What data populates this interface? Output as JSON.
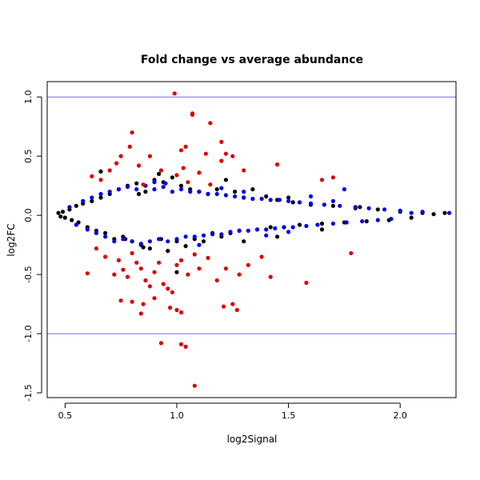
{
  "chart_data": {
    "type": "scatter",
    "title": "Fold change vs average abundance",
    "xlabel": "log2Signal",
    "ylabel": "log2FC",
    "xlim": [
      0.42,
      2.25
    ],
    "ylim": [
      -1.54,
      1.13
    ],
    "x_ticks": [
      "0.5",
      "1.0",
      "1.5",
      "2.0"
    ],
    "x_tick_values": [
      0.5,
      1.0,
      1.5,
      2.0
    ],
    "y_ticks": [
      "-1.5",
      "-1.0",
      "-0.5",
      "0.0",
      "0.5",
      "1.0"
    ],
    "y_tick_values": [
      -1.5,
      -1.0,
      -0.5,
      0.0,
      0.5,
      1.0
    ],
    "reference_lines": [
      1.0,
      -1.0
    ],
    "reference_line_color": "#7070dd",
    "grid": false,
    "series": [
      {
        "color": "#000000",
        "points": [
          [
            0.47,
            0.02
          ],
          [
            0.48,
            -0.01
          ],
          [
            0.49,
            0.03
          ],
          [
            0.5,
            -0.02
          ],
          [
            0.52,
            0.05
          ],
          [
            0.53,
            -0.04
          ],
          [
            0.55,
            0.08
          ],
          [
            0.56,
            -0.06
          ],
          [
            0.58,
            0.1
          ],
          [
            0.6,
            -0.1
          ],
          [
            0.62,
            0.12
          ],
          [
            0.64,
            -0.13
          ],
          [
            0.66,
            0.15
          ],
          [
            0.68,
            -0.15
          ],
          [
            0.7,
            0.18
          ],
          [
            0.72,
            -0.2
          ],
          [
            0.74,
            0.22
          ],
          [
            0.76,
            -0.18
          ],
          [
            0.78,
            0.25
          ],
          [
            0.8,
            -0.22
          ],
          [
            0.82,
            0.27
          ],
          [
            0.84,
            -0.25
          ],
          [
            0.86,
            0.2
          ],
          [
            0.88,
            -0.28
          ],
          [
            0.9,
            0.3
          ],
          [
            0.92,
            0.35
          ],
          [
            0.94,
            0.28
          ],
          [
            0.96,
            -0.3
          ],
          [
            0.98,
            0.32
          ],
          [
            1.0,
            -0.22
          ],
          [
            1.02,
            0.25
          ],
          [
            1.04,
            -0.26
          ],
          [
            1.06,
            0.22
          ],
          [
            1.08,
            -0.2
          ],
          [
            1.1,
            0.2
          ],
          [
            1.12,
            -0.22
          ],
          [
            1.14,
            0.18
          ],
          [
            1.16,
            -0.15
          ],
          [
            1.18,
            0.22
          ],
          [
            1.2,
            -0.18
          ],
          [
            1.22,
            0.3
          ],
          [
            1.24,
            -0.15
          ],
          [
            1.26,
            0.2
          ],
          [
            1.28,
            -0.13
          ],
          [
            1.3,
            0.15
          ],
          [
            1.34,
            0.22
          ],
          [
            1.36,
            -0.12
          ],
          [
            1.4,
            0.16
          ],
          [
            1.42,
            -0.1
          ],
          [
            1.45,
            0.13
          ],
          [
            1.48,
            -0.1
          ],
          [
            1.52,
            0.11
          ],
          [
            1.55,
            -0.08
          ],
          [
            1.6,
            0.09
          ],
          [
            1.65,
            -0.07
          ],
          [
            1.7,
            0.08
          ],
          [
            1.75,
            -0.06
          ],
          [
            1.8,
            0.06
          ],
          [
            1.85,
            -0.05
          ],
          [
            1.9,
            0.05
          ],
          [
            1.95,
            -0.04
          ],
          [
            2.0,
            0.03
          ],
          [
            2.05,
            -0.02
          ],
          [
            2.1,
            0.02
          ],
          [
            2.15,
            0.01
          ],
          [
            2.2,
            0.02
          ],
          [
            0.77,
            -0.2
          ],
          [
            0.83,
            0.18
          ],
          [
            0.93,
            -0.2
          ],
          [
            1.0,
            -0.48
          ],
          [
            0.66,
            0.37
          ],
          [
            0.85,
            -0.27
          ],
          [
            1.3,
            -0.22
          ],
          [
            1.45,
            -0.18
          ],
          [
            1.65,
            -0.12
          ],
          [
            1.5,
            0.15
          ],
          [
            1.82,
            0.07
          ]
        ]
      },
      {
        "color": "#0000ee",
        "points": [
          [
            0.52,
            0.07
          ],
          [
            0.55,
            -0.08
          ],
          [
            0.58,
            0.12
          ],
          [
            0.6,
            -0.12
          ],
          [
            0.62,
            0.15
          ],
          [
            0.64,
            -0.15
          ],
          [
            0.66,
            0.18
          ],
          [
            0.68,
            -0.18
          ],
          [
            0.7,
            0.2
          ],
          [
            0.72,
            -0.22
          ],
          [
            0.74,
            0.22
          ],
          [
            0.76,
            -0.2
          ],
          [
            0.78,
            0.24
          ],
          [
            0.8,
            -0.22
          ],
          [
            0.82,
            0.22
          ],
          [
            0.84,
            -0.24
          ],
          [
            0.86,
            0.25
          ],
          [
            0.88,
            -0.22
          ],
          [
            0.9,
            0.22
          ],
          [
            0.92,
            -0.2
          ],
          [
            0.94,
            0.24
          ],
          [
            0.96,
            -0.22
          ],
          [
            0.98,
            0.2
          ],
          [
            1.0,
            -0.2
          ],
          [
            1.02,
            0.22
          ],
          [
            1.04,
            -0.18
          ],
          [
            1.06,
            0.2
          ],
          [
            1.08,
            -0.18
          ],
          [
            1.1,
            0.2
          ],
          [
            1.12,
            -0.17
          ],
          [
            1.14,
            0.18
          ],
          [
            1.16,
            -0.16
          ],
          [
            1.18,
            0.18
          ],
          [
            1.2,
            -0.16
          ],
          [
            1.22,
            0.17
          ],
          [
            1.24,
            -0.14
          ],
          [
            1.26,
            0.16
          ],
          [
            1.28,
            -0.13
          ],
          [
            1.3,
            0.15
          ],
          [
            1.32,
            -0.13
          ],
          [
            1.34,
            0.14
          ],
          [
            1.36,
            -0.12
          ],
          [
            1.38,
            0.14
          ],
          [
            1.4,
            -0.12
          ],
          [
            1.42,
            0.13
          ],
          [
            1.44,
            -0.11
          ],
          [
            1.46,
            0.13
          ],
          [
            1.48,
            -0.1
          ],
          [
            1.5,
            0.12
          ],
          [
            1.52,
            -0.1
          ],
          [
            1.55,
            0.11
          ],
          [
            1.58,
            -0.09
          ],
          [
            1.6,
            0.1
          ],
          [
            1.63,
            -0.08
          ],
          [
            1.66,
            0.09
          ],
          [
            1.7,
            -0.07
          ],
          [
            1.73,
            0.08
          ],
          [
            1.76,
            -0.06
          ],
          [
            1.8,
            0.07
          ],
          [
            1.83,
            -0.05
          ],
          [
            1.86,
            0.06
          ],
          [
            1.9,
            -0.04
          ],
          [
            1.93,
            0.05
          ],
          [
            1.96,
            -0.03
          ],
          [
            2.0,
            0.04
          ],
          [
            2.05,
            0.02
          ],
          [
            2.1,
            0.03
          ],
          [
            2.22,
            0.02
          ],
          [
            0.9,
            0.28
          ],
          [
            1.2,
            0.23
          ],
          [
            1.4,
            -0.17
          ],
          [
            1.6,
            0.16
          ],
          [
            1.1,
            -0.25
          ],
          [
            0.95,
            0.27
          ],
          [
            1.3,
            0.2
          ],
          [
            1.5,
            -0.14
          ],
          [
            1.7,
            0.12
          ],
          [
            1.75,
            0.22
          ]
        ]
      },
      {
        "color": "#dd0000",
        "points": [
          [
            0.99,
            1.03
          ],
          [
            1.07,
            0.86
          ],
          [
            1.07,
            0.85
          ],
          [
            1.15,
            0.78
          ],
          [
            0.8,
            0.7
          ],
          [
            1.2,
            0.62
          ],
          [
            0.79,
            0.58
          ],
          [
            1.04,
            0.58
          ],
          [
            1.02,
            0.55
          ],
          [
            0.75,
            0.5
          ],
          [
            0.88,
            0.5
          ],
          [
            1.22,
            0.52
          ],
          [
            1.25,
            0.5
          ],
          [
            1.13,
            0.52
          ],
          [
            1.45,
            0.43
          ],
          [
            1.2,
            0.46
          ],
          [
            0.73,
            0.44
          ],
          [
            0.83,
            0.42
          ],
          [
            1.03,
            0.4
          ],
          [
            0.7,
            0.38
          ],
          [
            0.93,
            0.38
          ],
          [
            1.0,
            0.34
          ],
          [
            1.1,
            0.36
          ],
          [
            1.3,
            0.38
          ],
          [
            1.7,
            0.32
          ],
          [
            0.62,
            0.33
          ],
          [
            0.66,
            0.3
          ],
          [
            1.65,
            0.3
          ],
          [
            1.05,
            0.28
          ],
          [
            0.85,
            0.26
          ],
          [
            1.15,
            0.26
          ],
          [
            0.6,
            -0.49
          ],
          [
            0.68,
            -0.35
          ],
          [
            0.72,
            -0.5
          ],
          [
            0.74,
            -0.38
          ],
          [
            0.76,
            -0.46
          ],
          [
            0.78,
            -0.52
          ],
          [
            0.8,
            -0.32
          ],
          [
            0.82,
            -0.4
          ],
          [
            0.84,
            -0.45
          ],
          [
            0.86,
            -0.55
          ],
          [
            0.88,
            -0.6
          ],
          [
            0.9,
            -0.48
          ],
          [
            0.92,
            -0.4
          ],
          [
            0.94,
            -0.58
          ],
          [
            0.96,
            -0.62
          ],
          [
            0.98,
            -0.65
          ],
          [
            1.0,
            -0.42
          ],
          [
            1.02,
            -0.38
          ],
          [
            1.05,
            -0.5
          ],
          [
            1.08,
            -0.33
          ],
          [
            1.1,
            -0.45
          ],
          [
            1.14,
            -0.36
          ],
          [
            1.18,
            -0.55
          ],
          [
            1.22,
            -0.45
          ],
          [
            1.28,
            -0.5
          ],
          [
            1.32,
            -0.42
          ],
          [
            1.38,
            -0.35
          ],
          [
            1.42,
            -0.52
          ],
          [
            1.58,
            -0.57
          ],
          [
            0.75,
            -0.72
          ],
          [
            0.8,
            -0.73
          ],
          [
            0.85,
            -0.75
          ],
          [
            0.9,
            -0.7
          ],
          [
            0.97,
            -0.78
          ],
          [
            1.0,
            -0.8
          ],
          [
            1.02,
            -0.82
          ],
          [
            1.21,
            -0.77
          ],
          [
            1.25,
            -0.75
          ],
          [
            1.27,
            -0.8
          ],
          [
            0.84,
            -0.83
          ],
          [
            0.93,
            -1.08
          ],
          [
            1.02,
            -1.09
          ],
          [
            1.04,
            -1.11
          ],
          [
            1.08,
            -1.44
          ],
          [
            1.78,
            -0.32
          ],
          [
            0.64,
            -0.28
          ]
        ]
      }
    ]
  }
}
